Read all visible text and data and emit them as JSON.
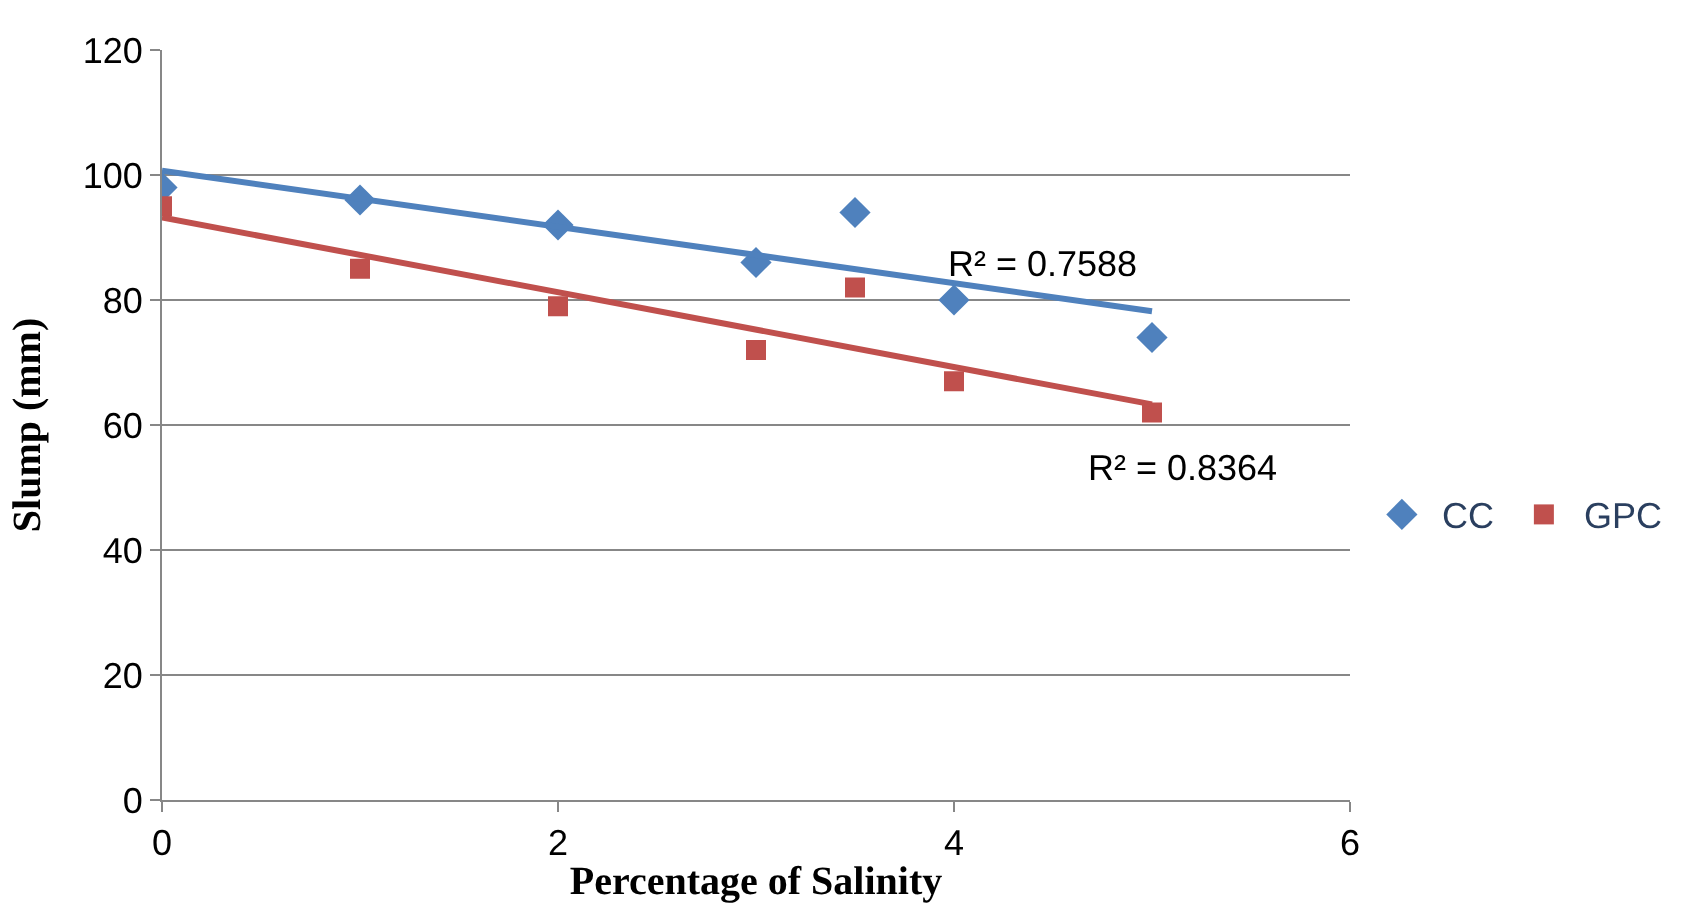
{
  "chart_data": {
    "type": "scatter",
    "xlabel": "Percentage of Salinity",
    "ylabel": "Slump (mm)",
    "xlim": [
      0,
      6
    ],
    "xticks": [
      0,
      2,
      4,
      6
    ],
    "ylim": [
      0,
      120
    ],
    "yticks": [
      0,
      20,
      40,
      60,
      80,
      100,
      120
    ],
    "grid": "y",
    "legend": "right",
    "series": [
      {
        "name": "CC",
        "marker": "diamond",
        "color": "#4f81bd",
        "x": [
          0,
          1,
          2,
          3,
          3.5,
          4,
          5
        ],
        "values": [
          98,
          96,
          92,
          86,
          94,
          80,
          74
        ]
      },
      {
        "name": "GPC",
        "marker": "square",
        "color": "#c0504d",
        "x": [
          0,
          1,
          2,
          3,
          3.5,
          4,
          5
        ],
        "values": [
          95,
          85,
          79,
          72,
          82,
          67,
          62
        ]
      },
      {
        "type": "line",
        "marker": "none",
        "color": "#4f81bd",
        "x": [
          0,
          5
        ],
        "values": [
          100.7,
          78.2
        ]
      },
      {
        "type": "line",
        "marker": "none",
        "color": "#c0504d",
        "x": [
          0,
          5
        ],
        "values": [
          93.2,
          63.3
        ]
      }
    ],
    "annotations": [
      "R² = 0.7588",
      "R² = 0.8364"
    ]
  }
}
